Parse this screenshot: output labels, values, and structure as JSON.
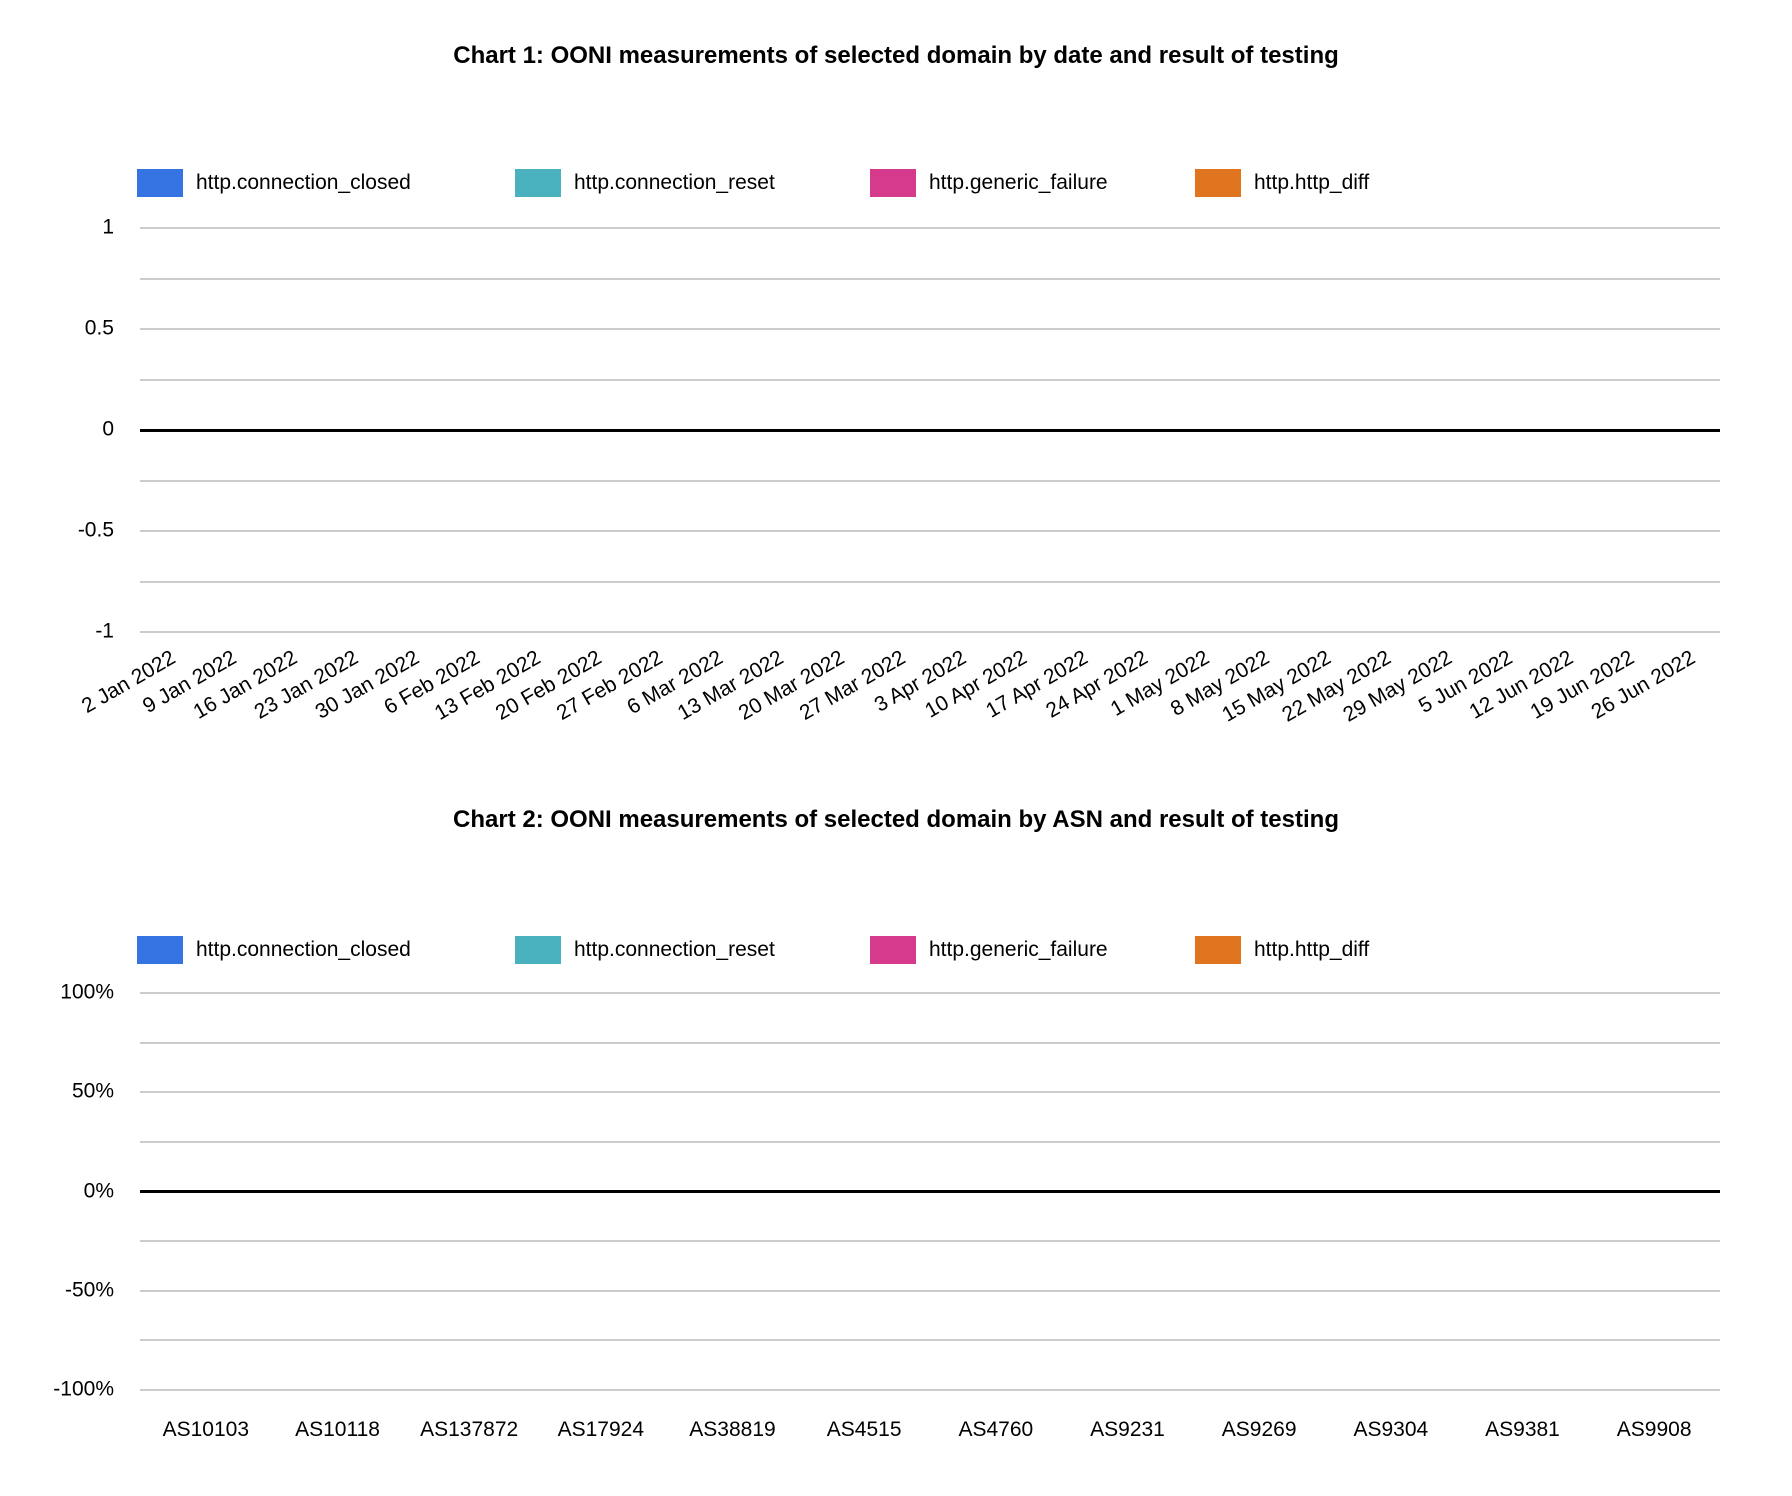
{
  "colors": {
    "background": "#ffffff",
    "gridline": "#cccccc",
    "zero_line": "#000000",
    "text": "#000000"
  },
  "chart_data": [
    {
      "type": "bar",
      "title": "Chart 1: OONI measurements of selected domain by date and result of testing",
      "xlabel": "",
      "ylabel": "",
      "ylim": [
        -1,
        1
      ],
      "grid": true,
      "legend_position": "top",
      "x_labels_rotated": true,
      "yticks": [
        {
          "value": 1,
          "label": "1"
        },
        {
          "value": 0.5,
          "label": "0.5"
        },
        {
          "value": 0,
          "label": "0"
        },
        {
          "value": -0.5,
          "label": "-0.5"
        },
        {
          "value": -1,
          "label": "-1"
        }
      ],
      "categories": [
        "2 Jan 2022",
        "9 Jan 2022",
        "16 Jan 2022",
        "23 Jan 2022",
        "30 Jan 2022",
        "6 Feb 2022",
        "13 Feb 2022",
        "20 Feb 2022",
        "27 Feb 2022",
        "6 Mar 2022",
        "13 Mar 2022",
        "20 Mar 2022",
        "27 Mar 2022",
        "3 Apr 2022",
        "10 Apr 2022",
        "17 Apr 2022",
        "24 Apr 2022",
        "1 May 2022",
        "8 May 2022",
        "15 May 2022",
        "22 May 2022",
        "29 May 2022",
        "5 Jun 2022",
        "12 Jun 2022",
        "19 Jun 2022",
        "26 Jun 2022"
      ],
      "series": [
        {
          "name": "http.connection_closed",
          "color": "#3673E3",
          "values": [
            0,
            0,
            0,
            0,
            0,
            0,
            0,
            0,
            0,
            0,
            0,
            0,
            0,
            0,
            0,
            0,
            0,
            0,
            0,
            0,
            0,
            0,
            0,
            0,
            0,
            0
          ]
        },
        {
          "name": "http.connection_reset",
          "color": "#4AB1BE",
          "values": [
            0,
            0,
            0,
            0,
            0,
            0,
            0,
            0,
            0,
            0,
            0,
            0,
            0,
            0,
            0,
            0,
            0,
            0,
            0,
            0,
            0,
            0,
            0,
            0,
            0,
            0
          ]
        },
        {
          "name": "http.generic_failure",
          "color": "#D53A8D",
          "values": [
            0,
            0,
            0,
            0,
            0,
            0,
            0,
            0,
            0,
            0,
            0,
            0,
            0,
            0,
            0,
            0,
            0,
            0,
            0,
            0,
            0,
            0,
            0,
            0,
            0,
            0
          ]
        },
        {
          "name": "http.http_diff",
          "color": "#E0741F",
          "values": [
            0,
            0,
            0,
            0,
            0,
            0,
            0,
            0,
            0,
            0,
            0,
            0,
            0,
            0,
            0,
            0,
            0,
            0,
            0,
            0,
            0,
            0,
            0,
            0,
            0,
            0
          ]
        }
      ]
    },
    {
      "type": "bar",
      "title": "Chart 2: OONI measurements of selected domain by ASN and result of testing",
      "xlabel": "",
      "ylabel": "",
      "ylim": [
        -100,
        100
      ],
      "grid": true,
      "legend_position": "top",
      "x_labels_rotated": false,
      "yticks": [
        {
          "value": 100,
          "label": "100%"
        },
        {
          "value": 50,
          "label": "50%"
        },
        {
          "value": 0,
          "label": "0%"
        },
        {
          "value": -50,
          "label": "-50%"
        },
        {
          "value": -100,
          "label": "-100%"
        }
      ],
      "categories": [
        "AS10103",
        "AS10118",
        "AS137872",
        "AS17924",
        "AS38819",
        "AS4515",
        "AS4760",
        "AS9231",
        "AS9269",
        "AS9304",
        "AS9381",
        "AS9908"
      ],
      "series": [
        {
          "name": "http.connection_closed",
          "color": "#3673E3",
          "values": [
            0,
            0,
            0,
            0,
            0,
            0,
            0,
            0,
            0,
            0,
            0,
            0
          ]
        },
        {
          "name": "http.connection_reset",
          "color": "#4AB1BE",
          "values": [
            0,
            0,
            0,
            0,
            0,
            0,
            0,
            0,
            0,
            0,
            0,
            0
          ]
        },
        {
          "name": "http.generic_failure",
          "color": "#D53A8D",
          "values": [
            0,
            0,
            0,
            0,
            0,
            0,
            0,
            0,
            0,
            0,
            0,
            0
          ]
        },
        {
          "name": "http.http_diff",
          "color": "#E0741F",
          "values": [
            0,
            0,
            0,
            0,
            0,
            0,
            0,
            0,
            0,
            0,
            0,
            0
          ]
        }
      ]
    }
  ]
}
